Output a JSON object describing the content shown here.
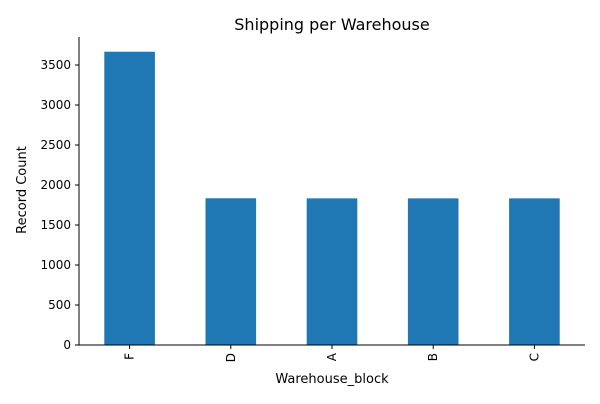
{
  "chart_data": {
    "type": "bar",
    "title": "Shipping per Warehouse",
    "xlabel": "Warehouse_block",
    "ylabel": "Record Count",
    "categories": [
      "F",
      "D",
      "A",
      "B",
      "C"
    ],
    "values": [
      3666,
      1834,
      1833,
      1833,
      1833
    ],
    "ylim": [
      0,
      3850
    ],
    "yticks": [
      "0",
      "500",
      "1000",
      "1500",
      "2000",
      "2500",
      "3000",
      "3500"
    ],
    "grid": false,
    "legend": "none",
    "bar_color": "#1f77b4",
    "spines": [
      "left",
      "bottom"
    ]
  }
}
